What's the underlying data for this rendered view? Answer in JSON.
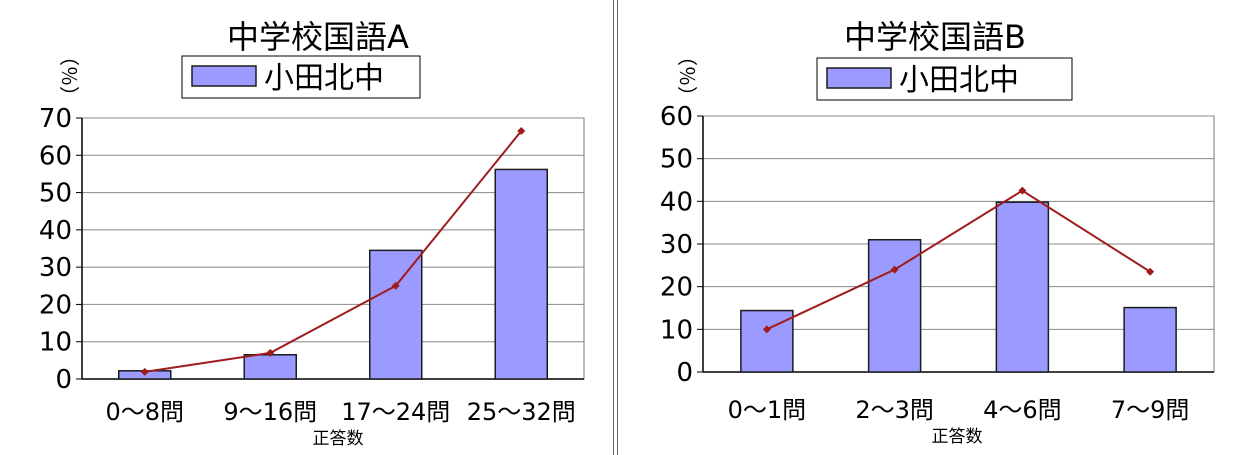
{
  "chart_data": [
    {
      "type": "bar",
      "title": "中学校国語A",
      "ylabel": "（％）",
      "xlabel": "正答数",
      "categories": [
        "0〜8問",
        "9〜16問",
        "17〜24問",
        "25〜32問"
      ],
      "ylim": [
        0,
        70
      ],
      "yticks": [
        0,
        10,
        20,
        30,
        40,
        50,
        60,
        70
      ],
      "grid": true,
      "legend": "top",
      "series": [
        {
          "name": "小田北中",
          "kind": "bar",
          "values": [
            2.2,
            6.5,
            34.5,
            56.2
          ]
        },
        {
          "kind": "line",
          "values": [
            1.9,
            7.0,
            25.0,
            66.5
          ]
        }
      ]
    },
    {
      "type": "bar",
      "title": "中学校国語B",
      "ylabel": "（％）",
      "xlabel": "正答数",
      "categories": [
        "0〜1問",
        "2〜3問",
        "4〜6問",
        "7〜9問"
      ],
      "ylim": [
        0,
        60
      ],
      "yticks": [
        0,
        10,
        20,
        30,
        40,
        50,
        60
      ],
      "grid": true,
      "legend": "top",
      "series": [
        {
          "name": "小田北中",
          "kind": "bar",
          "values": [
            14.4,
            31.0,
            39.8,
            15.1
          ]
        },
        {
          "kind": "line",
          "values": [
            10.0,
            24.0,
            42.5,
            23.5
          ]
        }
      ]
    }
  ],
  "colors": {
    "bar": "#9a9aff",
    "bar_stroke": "#1c1c1c",
    "line": "#a01c1c",
    "grid": "#888888"
  }
}
